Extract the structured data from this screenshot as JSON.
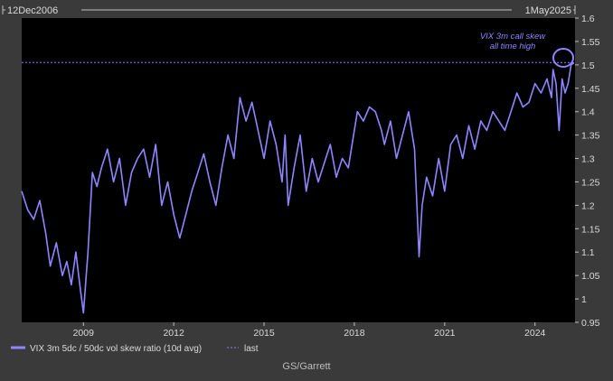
{
  "header": {
    "start_date": "12Dec2006",
    "end_date": "1May2025"
  },
  "annotation": {
    "line1": "VIX 3m call skew",
    "line2": "all time high"
  },
  "legend": {
    "series_label": "VIX 3m 5dc / 50dc vol skew ratio (10d avg)",
    "last_label": "last"
  },
  "source": "GS/Garrett",
  "colors": {
    "series": "#8f86ff",
    "background": "#000000",
    "frame": "#3a3a3a",
    "text": "#d9d9d9"
  },
  "chart_data": {
    "type": "line",
    "xlim": [
      2006.95,
      2025.33
    ],
    "ylim": [
      0.95,
      1.6
    ],
    "x_ticks": [
      2009,
      2012,
      2015,
      2018,
      2021,
      2024
    ],
    "y_ticks": [
      0.95,
      1,
      1.05,
      1.1,
      1.15,
      1.2,
      1.25,
      1.3,
      1.35,
      1.4,
      1.45,
      1.5,
      1.55,
      1.6
    ],
    "last_value": 1.505,
    "series": [
      {
        "name": "VIX 3m 5dc / 50dc vol skew ratio (10d avg)",
        "x": [
          2006.95,
          2007.15,
          2007.35,
          2007.55,
          2007.75,
          2007.9,
          2008.1,
          2008.3,
          2008.45,
          2008.6,
          2008.75,
          2008.9,
          2009.0,
          2009.15,
          2009.3,
          2009.45,
          2009.6,
          2009.8,
          2010.0,
          2010.2,
          2010.4,
          2010.6,
          2010.8,
          2011.0,
          2011.2,
          2011.4,
          2011.6,
          2011.8,
          2012.0,
          2012.2,
          2012.4,
          2012.6,
          2012.8,
          2013.0,
          2013.2,
          2013.4,
          2013.6,
          2013.8,
          2014.0,
          2014.2,
          2014.4,
          2014.6,
          2014.8,
          2015.0,
          2015.2,
          2015.4,
          2015.6,
          2015.7,
          2015.8,
          2016.0,
          2016.2,
          2016.4,
          2016.6,
          2016.8,
          2017.0,
          2017.2,
          2017.4,
          2017.6,
          2017.8,
          2018.0,
          2018.1,
          2018.3,
          2018.5,
          2018.7,
          2018.9,
          2019.0,
          2019.2,
          2019.4,
          2019.6,
          2019.8,
          2020.0,
          2020.15,
          2020.25,
          2020.4,
          2020.6,
          2020.8,
          2021.0,
          2021.2,
          2021.4,
          2021.6,
          2021.8,
          2022.0,
          2022.2,
          2022.4,
          2022.6,
          2022.8,
          2023.0,
          2023.2,
          2023.4,
          2023.6,
          2023.8,
          2024.0,
          2024.2,
          2024.4,
          2024.55,
          2024.6,
          2024.7,
          2024.8,
          2024.9,
          2025.0,
          2025.1,
          2025.2,
          2025.3
        ],
        "y": [
          1.23,
          1.19,
          1.17,
          1.21,
          1.14,
          1.07,
          1.12,
          1.05,
          1.08,
          1.03,
          1.1,
          1.02,
          0.97,
          1.1,
          1.27,
          1.24,
          1.28,
          1.32,
          1.25,
          1.3,
          1.2,
          1.27,
          1.3,
          1.32,
          1.26,
          1.33,
          1.2,
          1.25,
          1.18,
          1.13,
          1.18,
          1.23,
          1.27,
          1.31,
          1.25,
          1.2,
          1.28,
          1.35,
          1.3,
          1.43,
          1.38,
          1.42,
          1.36,
          1.3,
          1.38,
          1.33,
          1.25,
          1.35,
          1.2,
          1.28,
          1.35,
          1.23,
          1.3,
          1.25,
          1.29,
          1.33,
          1.26,
          1.3,
          1.28,
          1.36,
          1.4,
          1.38,
          1.41,
          1.4,
          1.36,
          1.33,
          1.38,
          1.3,
          1.35,
          1.4,
          1.32,
          1.09,
          1.2,
          1.26,
          1.22,
          1.3,
          1.23,
          1.33,
          1.35,
          1.3,
          1.37,
          1.32,
          1.38,
          1.36,
          1.4,
          1.38,
          1.36,
          1.4,
          1.44,
          1.41,
          1.42,
          1.46,
          1.44,
          1.47,
          1.43,
          1.49,
          1.46,
          1.36,
          1.47,
          1.44,
          1.46,
          1.5,
          1.505
        ]
      }
    ]
  }
}
